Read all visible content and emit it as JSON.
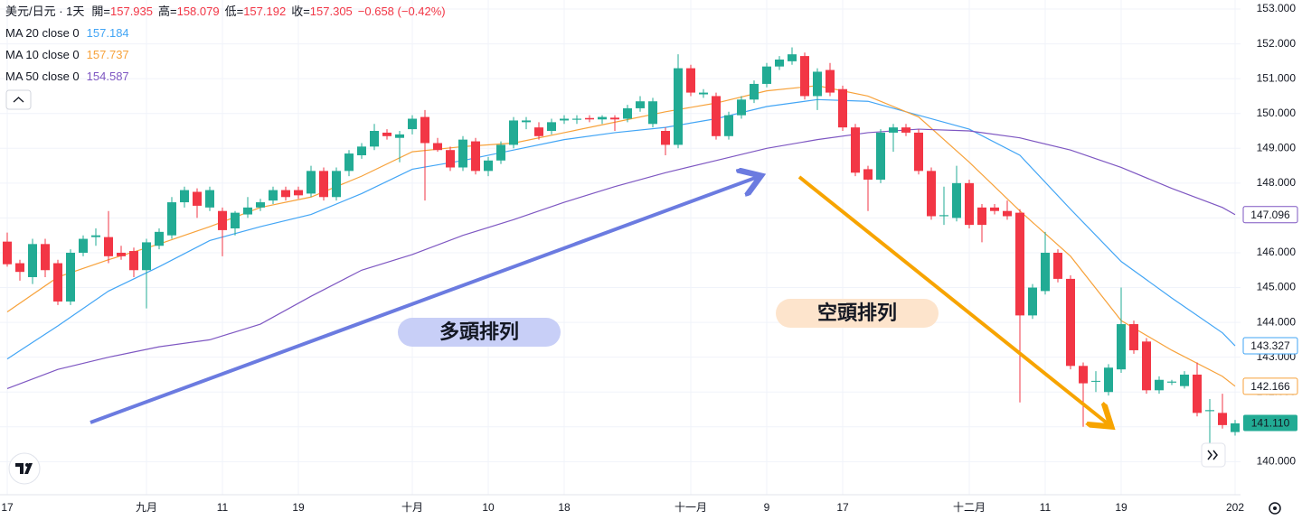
{
  "chart_data": {
    "type": "candlestick",
    "title": "美元/日元 · 1天",
    "ohlc": [
      {
        "label": "開=",
        "value": 157.935
      },
      {
        "label": "高=",
        "value": 158.079
      },
      {
        "label": "低=",
        "value": 157.192
      },
      {
        "label": "收=",
        "value": 157.305
      }
    ],
    "change": "−0.658 (−0.42%)",
    "annotations": [
      "多頭排列",
      "空頭排列"
    ],
    "ylim": [
      139.05,
      153.26
    ],
    "yticks": [
      {
        "value": 140,
        "label": "140.000"
      },
      {
        "value": 141,
        "label": "141.000"
      },
      {
        "value": 142,
        "label": "142.000"
      },
      {
        "value": 143,
        "label": "143.000"
      },
      {
        "value": 144,
        "label": "144.000"
      },
      {
        "value": 145,
        "label": "145.000"
      },
      {
        "value": 146,
        "label": "146.000"
      },
      {
        "value": 147,
        "label": "147.000"
      },
      {
        "value": 148,
        "label": "148.000"
      },
      {
        "value": 149,
        "label": "149.000"
      },
      {
        "value": 150,
        "label": "150.000"
      },
      {
        "value": 151,
        "label": "151.000"
      },
      {
        "value": 152,
        "label": "152.000"
      },
      {
        "value": 153,
        "label": "153.000"
      }
    ],
    "grid": true,
    "up_color": "#22ab94",
    "down_color": "#f23645",
    "categories": [
      "17",
      null,
      null,
      null,
      null,
      null,
      null,
      null,
      null,
      null,
      null,
      "九月",
      null,
      null,
      null,
      null,
      null,
      "11",
      null,
      null,
      null,
      null,
      null,
      "19",
      null,
      null,
      null,
      null,
      null,
      null,
      null,
      null,
      "十月",
      null,
      null,
      null,
      null,
      null,
      "10",
      null,
      null,
      null,
      null,
      null,
      "18",
      null,
      null,
      null,
      null,
      null,
      null,
      null,
      null,
      null,
      "十一月",
      null,
      null,
      null,
      null,
      null,
      "9",
      null,
      null,
      null,
      null,
      null,
      "17",
      null,
      null,
      null,
      null,
      null,
      null,
      null,
      null,
      null,
      "十二月",
      null,
      null,
      null,
      null,
      null,
      "11",
      null,
      null,
      null,
      null,
      null,
      "19",
      null,
      null,
      null,
      null,
      null,
      null,
      null,
      null,
      "202"
    ],
    "candles": [
      [
        146.32,
        146.58,
        145.6,
        145.67
      ],
      [
        145.7,
        145.8,
        145.2,
        145.45
      ],
      [
        145.3,
        146.4,
        145.1,
        146.25
      ],
      [
        146.25,
        146.4,
        145.3,
        145.5
      ],
      [
        145.7,
        145.8,
        144.5,
        144.6
      ],
      [
        144.6,
        146.1,
        144.5,
        146.0
      ],
      [
        146.0,
        146.5,
        145.9,
        146.4
      ],
      [
        146.45,
        146.7,
        146.2,
        146.5
      ],
      [
        146.45,
        147.2,
        145.7,
        145.9
      ],
      [
        146.0,
        146.2,
        145.8,
        145.9
      ],
      [
        146.05,
        146.15,
        145.3,
        145.5
      ],
      [
        145.5,
        146.4,
        144.4,
        146.3
      ],
      [
        146.2,
        146.7,
        146.1,
        146.6
      ],
      [
        146.5,
        147.6,
        146.4,
        147.45
      ],
      [
        147.45,
        147.9,
        147.3,
        147.8
      ],
      [
        147.75,
        147.85,
        147.0,
        147.35
      ],
      [
        147.3,
        147.9,
        147.2,
        147.8
      ],
      [
        147.2,
        147.3,
        145.9,
        146.65
      ],
      [
        146.7,
        147.2,
        146.5,
        147.15
      ],
      [
        147.1,
        147.6,
        147.0,
        147.3
      ],
      [
        147.3,
        147.55,
        147.2,
        147.45
      ],
      [
        147.5,
        147.9,
        147.4,
        147.8
      ],
      [
        147.8,
        147.9,
        147.5,
        147.6
      ],
      [
        147.8,
        147.9,
        147.55,
        147.65
      ],
      [
        147.7,
        148.5,
        147.6,
        148.35
      ],
      [
        148.35,
        148.45,
        147.5,
        147.6
      ],
      [
        147.6,
        148.45,
        147.5,
        148.35
      ],
      [
        148.35,
        148.95,
        148.2,
        148.85
      ],
      [
        148.8,
        149.15,
        148.7,
        149.05
      ],
      [
        149.05,
        149.7,
        148.95,
        149.5
      ],
      [
        149.45,
        149.55,
        149.25,
        149.35
      ],
      [
        149.3,
        149.5,
        148.6,
        149.4
      ],
      [
        149.55,
        149.95,
        149.4,
        149.85
      ],
      [
        149.9,
        150.1,
        147.5,
        149.15
      ],
      [
        149.15,
        149.3,
        148.9,
        148.95
      ],
      [
        148.95,
        149.05,
        148.35,
        148.45
      ],
      [
        148.45,
        149.35,
        148.35,
        149.25
      ],
      [
        149.2,
        149.3,
        148.25,
        148.35
      ],
      [
        148.35,
        148.75,
        148.2,
        148.65
      ],
      [
        148.65,
        149.2,
        148.55,
        149.1
      ],
      [
        149.1,
        149.9,
        149.0,
        149.8
      ],
      [
        149.75,
        149.9,
        149.55,
        149.8
      ],
      [
        149.6,
        149.75,
        149.25,
        149.35
      ],
      [
        149.5,
        149.85,
        149.4,
        149.75
      ],
      [
        149.8,
        149.95,
        149.7,
        149.85
      ],
      [
        149.82,
        149.95,
        149.7,
        149.85
      ],
      [
        149.87,
        149.95,
        149.75,
        149.83
      ],
      [
        149.83,
        149.95,
        149.7,
        149.9
      ],
      [
        149.88,
        149.95,
        149.5,
        149.83
      ],
      [
        149.85,
        150.25,
        149.75,
        150.15
      ],
      [
        150.15,
        150.5,
        150.05,
        150.35
      ],
      [
        149.7,
        150.45,
        149.6,
        150.35
      ],
      [
        149.5,
        149.6,
        148.8,
        149.1
      ],
      [
        149.1,
        151.7,
        149.0,
        151.3
      ],
      [
        151.3,
        151.4,
        150.5,
        150.6
      ],
      [
        150.55,
        150.7,
        150.45,
        150.6
      ],
      [
        150.5,
        150.6,
        149.25,
        149.35
      ],
      [
        149.35,
        150.05,
        149.25,
        149.95
      ],
      [
        149.95,
        150.5,
        149.85,
        150.4
      ],
      [
        150.4,
        150.95,
        150.3,
        150.85
      ],
      [
        150.85,
        151.45,
        150.75,
        151.35
      ],
      [
        151.35,
        151.65,
        151.25,
        151.55
      ],
      [
        151.5,
        151.9,
        151.4,
        151.7
      ],
      [
        151.65,
        151.75,
        150.4,
        150.5
      ],
      [
        150.5,
        151.3,
        150.1,
        151.2
      ],
      [
        151.25,
        151.45,
        150.5,
        150.6
      ],
      [
        150.7,
        150.8,
        149.5,
        149.6
      ],
      [
        149.6,
        149.7,
        148.2,
        148.3
      ],
      [
        148.4,
        148.5,
        147.2,
        148.1
      ],
      [
        148.1,
        149.55,
        148.0,
        149.45
      ],
      [
        149.45,
        149.7,
        148.9,
        149.6
      ],
      [
        149.6,
        149.7,
        149.35,
        149.45
      ],
      [
        149.45,
        149.55,
        148.25,
        148.35
      ],
      [
        148.35,
        148.45,
        146.95,
        147.05
      ],
      [
        147.05,
        147.9,
        146.8,
        147.08
      ],
      [
        147.0,
        148.5,
        146.9,
        148.0
      ],
      [
        148.0,
        148.1,
        146.7,
        146.8
      ],
      [
        147.3,
        147.4,
        146.3,
        146.8
      ],
      [
        147.3,
        147.4,
        147.1,
        147.2
      ],
      [
        147.2,
        147.5,
        146.95,
        147.05
      ],
      [
        147.15,
        147.25,
        141.7,
        144.2
      ],
      [
        144.2,
        145.1,
        144.1,
        145.0
      ],
      [
        144.9,
        146.6,
        144.8,
        146.0
      ],
      [
        146.0,
        146.1,
        145.15,
        145.25
      ],
      [
        145.25,
        145.35,
        142.65,
        142.75
      ],
      [
        142.75,
        142.85,
        141.0,
        142.25
      ],
      [
        142.3,
        142.6,
        142.0,
        142.32
      ],
      [
        142.0,
        142.8,
        141.9,
        142.7
      ],
      [
        142.65,
        145.0,
        142.55,
        143.95
      ],
      [
        143.95,
        144.05,
        143.1,
        143.2
      ],
      [
        143.45,
        143.55,
        141.95,
        142.05
      ],
      [
        142.05,
        142.45,
        141.95,
        142.35
      ],
      [
        142.27,
        142.35,
        142.2,
        142.3
      ],
      [
        142.17,
        142.6,
        142.1,
        142.5
      ],
      [
        142.5,
        142.85,
        141.3,
        141.4
      ],
      [
        141.45,
        141.8,
        140.5,
        141.48
      ],
      [
        141.4,
        141.95,
        140.95,
        141.05
      ],
      [
        140.85,
        141.2,
        140.75,
        141.1
      ]
    ],
    "price_label": {
      "value": 141.11,
      "label": "141.110"
    },
    "series": [
      {
        "name": "MA 20 close 0",
        "legend_value": 157.184,
        "color": "#42a5f5",
        "last_label": "143.327",
        "x": [
          0,
          4,
          8,
          12,
          16,
          20,
          24,
          28,
          32,
          36,
          40,
          44,
          48,
          52,
          56,
          60,
          64,
          68,
          72,
          76,
          80,
          84,
          88,
          92,
          96,
          97
        ],
        "values": [
          142.95,
          143.9,
          144.9,
          145.6,
          146.35,
          146.75,
          147.1,
          147.7,
          148.4,
          148.65,
          148.95,
          149.25,
          149.45,
          149.6,
          149.85,
          150.2,
          150.4,
          150.35,
          149.95,
          149.55,
          148.8,
          147.25,
          145.75,
          144.7,
          143.7,
          143.327
        ]
      },
      {
        "name": "MA 10 close 0",
        "legend_value": 157.737,
        "color": "#f7a23b",
        "last_label": "142.166",
        "x": [
          0,
          4,
          8,
          12,
          16,
          20,
          24,
          28,
          32,
          36,
          40,
          44,
          48,
          52,
          56,
          60,
          64,
          68,
          72,
          76,
          80,
          84,
          88,
          92,
          96,
          97
        ],
        "values": [
          144.3,
          145.3,
          145.8,
          146.25,
          146.75,
          147.3,
          147.6,
          148.2,
          148.9,
          149.05,
          149.15,
          149.45,
          149.75,
          150.05,
          150.3,
          150.65,
          150.8,
          150.5,
          149.9,
          148.6,
          147.2,
          145.9,
          144.05,
          143.2,
          142.45,
          142.166
        ]
      },
      {
        "name": "MA 50 close 0",
        "legend_value": 154.587,
        "color": "#7e57c2",
        "last_label": "147.096",
        "x": [
          0,
          4,
          8,
          12,
          16,
          20,
          24,
          28,
          32,
          36,
          40,
          44,
          48,
          52,
          56,
          60,
          64,
          68,
          72,
          76,
          80,
          84,
          88,
          92,
          96,
          97
        ],
        "values": [
          142.1,
          142.65,
          143.0,
          143.3,
          143.5,
          143.95,
          144.75,
          145.5,
          145.95,
          146.5,
          146.95,
          147.45,
          147.9,
          148.3,
          148.65,
          149.0,
          149.25,
          149.45,
          149.55,
          149.5,
          149.3,
          148.95,
          148.45,
          147.85,
          147.3,
          147.096
        ]
      }
    ]
  }
}
